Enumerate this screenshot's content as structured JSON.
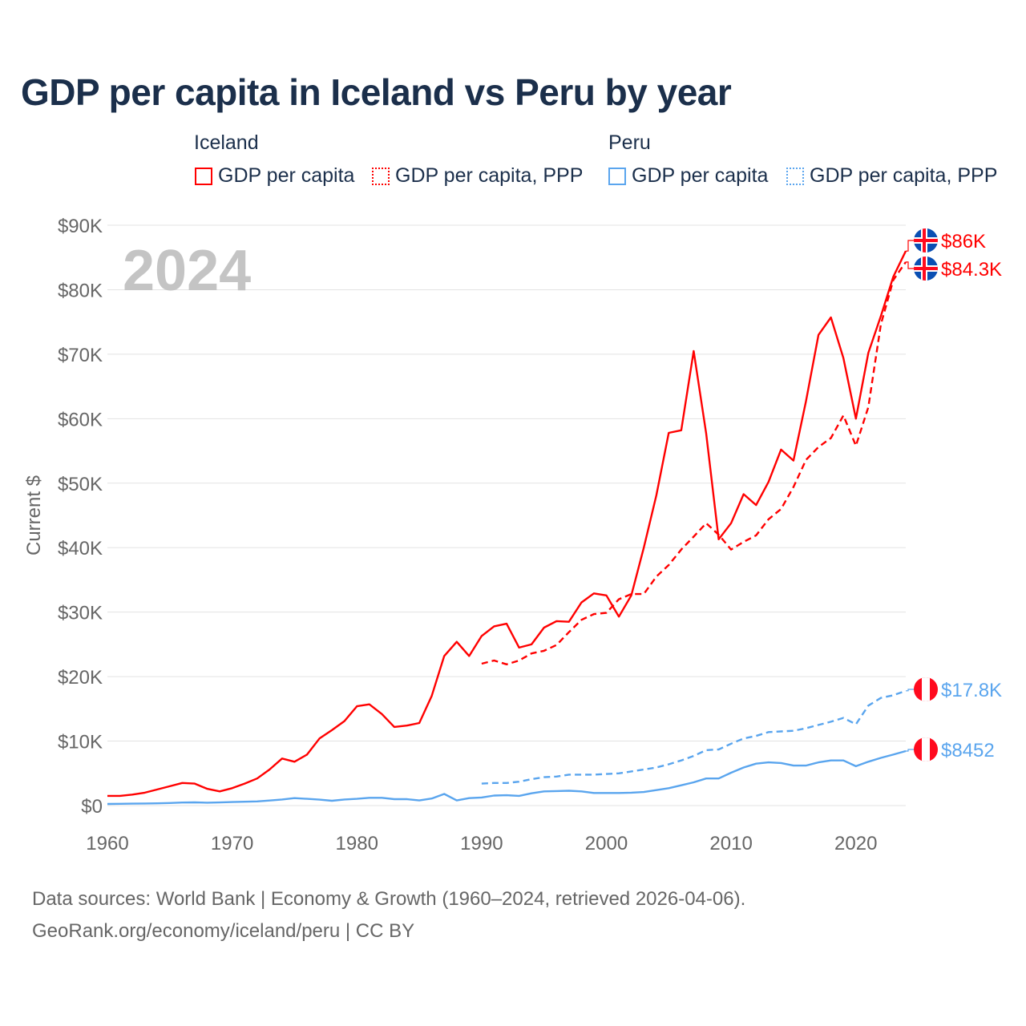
{
  "chart_data": {
    "type": "line",
    "title": "GDP per capita in Iceland vs Peru by year",
    "ylabel": "Current $",
    "xlabel": "",
    "xlim": [
      1960,
      2024
    ],
    "ylim": [
      0,
      90000
    ],
    "x_ticks": [
      1960,
      1970,
      1980,
      1990,
      2000,
      2010,
      2020
    ],
    "x_tick_labels": [
      "1960",
      "1970",
      "1980",
      "1990",
      "2000",
      "2010",
      "2020"
    ],
    "y_ticks": [
      0,
      10000,
      20000,
      30000,
      40000,
      50000,
      60000,
      70000,
      80000,
      90000
    ],
    "y_tick_labels": [
      "$0",
      "$10K",
      "$20K",
      "$30K",
      "$40K",
      "$50K",
      "$60K",
      "$70K",
      "$80K",
      "$90K"
    ],
    "grid": true,
    "year_watermark": "2024",
    "legend_groups": [
      {
        "country": "Iceland",
        "items": [
          "GDP per capita",
          "GDP per capita, PPP"
        ]
      },
      {
        "country": "Peru",
        "items": [
          "GDP per capita",
          "GDP per capita, PPP"
        ]
      }
    ],
    "series": [
      {
        "name": "Iceland GDP per capita",
        "country": "Iceland",
        "color": "#ff0000",
        "dash": false,
        "start": 1960,
        "end_label": "$86K",
        "values": [
          1.5,
          1.5,
          1.7,
          2.0,
          2.5,
          3.0,
          3.5,
          3.4,
          2.6,
          2.2,
          2.7,
          3.4,
          4.2,
          5.6,
          7.3,
          6.8,
          7.9,
          10.4,
          11.7,
          13.1,
          15.4,
          15.7,
          14.2,
          12.2,
          12.4,
          12.8,
          17.0,
          23.2,
          25.4,
          23.2,
          26.3,
          27.8,
          28.2,
          24.5,
          25.0,
          27.6,
          28.6,
          28.5,
          31.5,
          32.9,
          32.6,
          29.3,
          32.6,
          40.0,
          48.1,
          57.8,
          58.2,
          70.5,
          57.7,
          41.3,
          43.8,
          48.3,
          46.6,
          50.2,
          55.2,
          53.5,
          62.7,
          73.0,
          75.7,
          69.4,
          60.0,
          70.2,
          75.9,
          82.0,
          86.0
        ]
      },
      {
        "name": "Iceland GDP per capita, PPP",
        "country": "Iceland",
        "color": "#ff0000",
        "dash": true,
        "start": 1990,
        "end_label": "$84.3K",
        "values": [
          22.0,
          22.5,
          21.9,
          22.5,
          23.6,
          24.0,
          24.9,
          26.9,
          28.8,
          29.7,
          29.9,
          32.0,
          32.8,
          32.8,
          35.5,
          37.3,
          39.7,
          41.7,
          43.8,
          42.0,
          39.7,
          40.9,
          41.9,
          44.4,
          46.0,
          49.4,
          53.6,
          55.6,
          57.0,
          60.5,
          55.8,
          61.8,
          74.6,
          81.5,
          84.3
        ]
      },
      {
        "name": "Peru GDP per capita",
        "country": "Peru",
        "color": "#5aa5ee",
        "dash": false,
        "start": 1960,
        "end_label": "$8452",
        "values": [
          0.25,
          0.27,
          0.3,
          0.32,
          0.35,
          0.4,
          0.47,
          0.5,
          0.45,
          0.48,
          0.55,
          0.6,
          0.65,
          0.78,
          0.95,
          1.15,
          1.05,
          0.92,
          0.75,
          0.95,
          1.05,
          1.2,
          1.2,
          1.0,
          1.0,
          0.8,
          1.1,
          1.8,
          0.8,
          1.15,
          1.25,
          1.55,
          1.6,
          1.5,
          1.9,
          2.2,
          2.25,
          2.3,
          2.2,
          1.95,
          1.95,
          1.95,
          2.0,
          2.1,
          2.4,
          2.7,
          3.15,
          3.6,
          4.2,
          4.2,
          5.1,
          5.9,
          6.5,
          6.7,
          6.6,
          6.2,
          6.2,
          6.7,
          7.0,
          7.0,
          6.1,
          6.8,
          7.4,
          7.9,
          8.452
        ]
      },
      {
        "name": "Peru GDP per capita, PPP",
        "country": "Peru",
        "color": "#5aa5ee",
        "dash": true,
        "start": 1990,
        "end_label": "$17.8K",
        "values": [
          3.4,
          3.5,
          3.5,
          3.7,
          4.1,
          4.4,
          4.5,
          4.8,
          4.8,
          4.8,
          4.9,
          5.0,
          5.3,
          5.6,
          5.9,
          6.4,
          7.0,
          7.7,
          8.6,
          8.7,
          9.6,
          10.4,
          10.8,
          11.4,
          11.5,
          11.6,
          12.0,
          12.5,
          13.0,
          13.6,
          12.6,
          15.5,
          16.7,
          17.1,
          17.8
        ]
      }
    ],
    "value_unit": "thousands USD"
  },
  "footer": {
    "line1": "Data sources: World Bank | Economy & Growth (1960–2024, retrieved 2026-04-06).",
    "line2": "GeoRank.org/economy/iceland/peru | CC BY"
  }
}
